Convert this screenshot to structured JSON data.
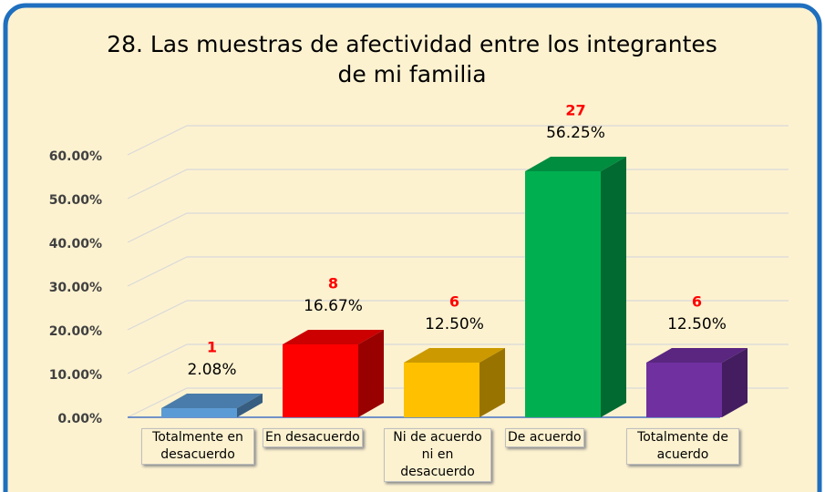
{
  "chart_data": {
    "type": "bar3d",
    "title": "28. Las muestras de afectividad entre los integrantes de mi familia",
    "categories": [
      "Totalmente en desacuerdo",
      "En desacuerdo",
      "Ni de acuerdo ni en desacuerdo",
      "De acuerdo",
      "Totalmente de acuerdo"
    ],
    "values": [
      2.08,
      16.67,
      12.5,
      56.25,
      12.5
    ],
    "value_labels": [
      "2.08%",
      "16.67%",
      "12.50%",
      "56.25%",
      "12.50%"
    ],
    "counts": [
      1,
      8,
      6,
      27,
      6
    ],
    "colors": [
      "#5b9bd5",
      "#ff0000",
      "#ffc000",
      "#00b050",
      "#7030a0"
    ],
    "ylim": [
      0,
      70
    ],
    "yticks": [
      {
        "value": 0,
        "label": "0.00%"
      },
      {
        "value": 10,
        "label": "10.00%"
      },
      {
        "value": 20,
        "label": "20.00%"
      },
      {
        "value": 30,
        "label": "30.00%"
      },
      {
        "value": 40,
        "label": "40.00%"
      },
      {
        "value": 50,
        "label": "50.00%"
      },
      {
        "value": 60,
        "label": "60.00%"
      }
    ],
    "grid": true
  }
}
